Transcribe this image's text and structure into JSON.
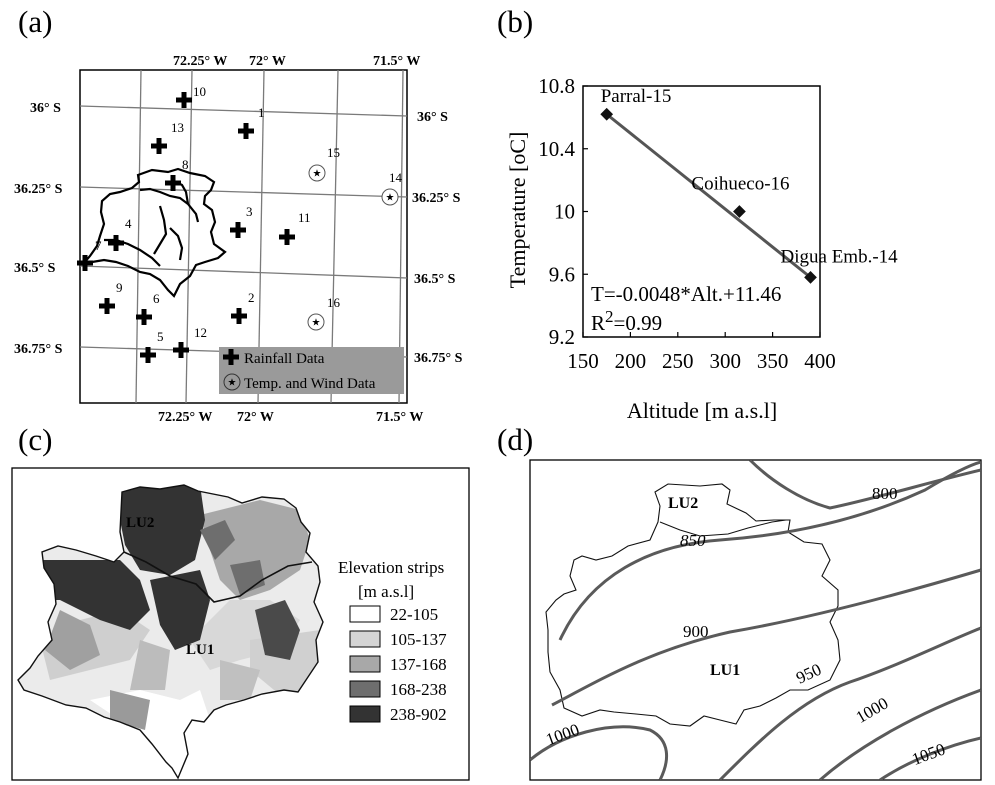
{
  "panels": {
    "a": {
      "letter": "(a)"
    },
    "b": {
      "letter": "(b)"
    },
    "c": {
      "letter": "(c)"
    },
    "d": {
      "letter": "(d)"
    }
  },
  "map_a": {
    "top_lon_labels": [
      "72.25° W",
      "72° W",
      "71.5° W"
    ],
    "bottom_lon_labels": [
      "72.25° W",
      "72° W",
      "71.5° W"
    ],
    "left_lat_labels": [
      "36° S",
      "36.25° S",
      "36.5° S",
      "36.75° S"
    ],
    "right_lat_labels": [
      "36° S",
      "36.25° S",
      "36.5° S",
      "36.75° S"
    ],
    "rain_station_labels": [
      "1",
      "2",
      "3",
      "4",
      "5",
      "6",
      "7",
      "8",
      "9",
      "10",
      "11",
      "12",
      "13"
    ],
    "temp_station_labels": [
      "14",
      "15",
      "16"
    ],
    "legend": {
      "rainfall": "Rainfall Data",
      "temp_wind": "Temp. and Wind Data"
    }
  },
  "chart_data": {
    "type": "scatter",
    "points": [
      {
        "label": "Parral-15",
        "x": 175,
        "y": 10.62
      },
      {
        "label": "Coihueco-16",
        "x": 315,
        "y": 10.0
      },
      {
        "label": "Digua Emb.-14",
        "x": 390,
        "y": 9.58
      }
    ],
    "fit_line": {
      "x": [
        175,
        390
      ],
      "y": [
        10.62,
        9.58
      ]
    },
    "equation": "T=-0.0048*Alt.+11.46",
    "r2_label": "R",
    "r2_sup": "2",
    "r2_value": "=0.99",
    "xlabel": "Altitude [m a.s.l]",
    "ylabel": "Temperature [oC]",
    "xlim": [
      150,
      400
    ],
    "ylim": [
      9.2,
      10.8
    ],
    "xticks": [
      "150",
      "200",
      "250",
      "300",
      "350",
      "400"
    ],
    "yticks": [
      "9.2",
      "9.6",
      "10",
      "10.4",
      "10.8"
    ]
  },
  "map_c": {
    "legend_title_1": "Elevation strips",
    "legend_title_2": "[m a.s.l]",
    "strips": [
      {
        "label": "22-105",
        "color": "#ffffff"
      },
      {
        "label": "105-137",
        "color": "#d4d4d4"
      },
      {
        "label": "137-168",
        "color": "#a8a8a8"
      },
      {
        "label": "168-238",
        "color": "#6e6e6e"
      },
      {
        "label": "238-902",
        "color": "#333333"
      }
    ],
    "unit_labels": [
      "LU2",
      "LU1"
    ]
  },
  "map_d": {
    "unit_labels": [
      "LU2",
      "LU1"
    ],
    "contour_labels": [
      "800",
      "850",
      "900",
      "950",
      "1000",
      "1000",
      "1050"
    ]
  }
}
